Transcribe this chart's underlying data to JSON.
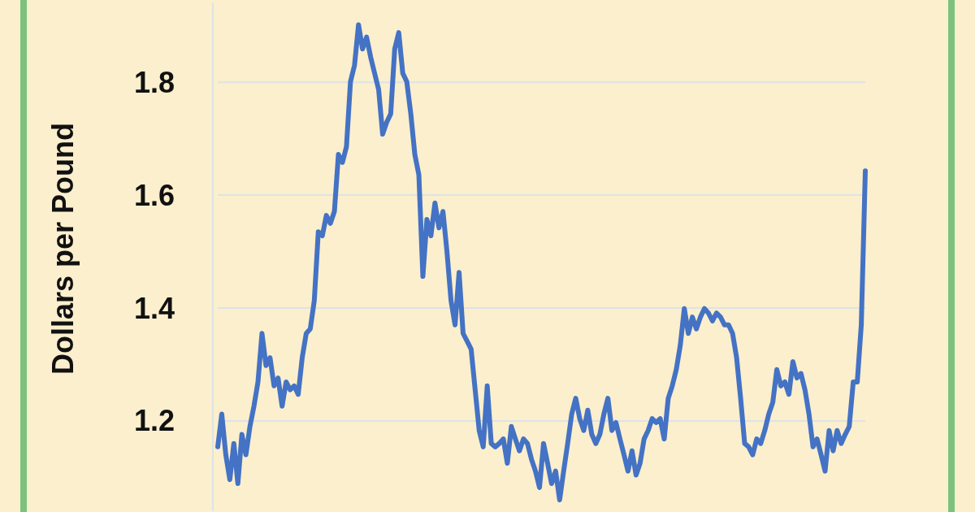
{
  "chart_data": {
    "type": "line",
    "ylabel": "Dollars per Pound",
    "categories": [
      null,
      null,
      null,
      null,
      null,
      null,
      null,
      null,
      null,
      null,
      null,
      null,
      null,
      null,
      null,
      null,
      null,
      null,
      null,
      null,
      null,
      null,
      null,
      null,
      null,
      null,
      null,
      null,
      null,
      null,
      null,
      null,
      null,
      null,
      null,
      null,
      null,
      null,
      null,
      null,
      null,
      null,
      null,
      null,
      null,
      null,
      null,
      null,
      null,
      null,
      null,
      null,
      null,
      null,
      null,
      null,
      null,
      null,
      null,
      null,
      null,
      null,
      null,
      null,
      null,
      null,
      null,
      null,
      null,
      null,
      null,
      null,
      null,
      null,
      null,
      null,
      null,
      null,
      null,
      null,
      null,
      null,
      null,
      null,
      null,
      null,
      null,
      null,
      null,
      null,
      null,
      null,
      null,
      null,
      null,
      null,
      null,
      null,
      null,
      null,
      null,
      null,
      null,
      null,
      null,
      null,
      null,
      null,
      null,
      null,
      null,
      null,
      null,
      null,
      null,
      null,
      null,
      null,
      null,
      null,
      null,
      null,
      null,
      null,
      null,
      null,
      null,
      null,
      null,
      null,
      null,
      null,
      null,
      null,
      null,
      null,
      null,
      null,
      null,
      null,
      null,
      null,
      null,
      null,
      null,
      null,
      null,
      null,
      null,
      null,
      null,
      null,
      null,
      null,
      null,
      null,
      null,
      null,
      null,
      null,
      null,
      null
    ],
    "series": [
      {
        "color": "#4472c4",
        "values": [
          1.154,
          1.212,
          1.14,
          1.096,
          1.16,
          1.089,
          1.176,
          1.14,
          1.19,
          1.226,
          1.269,
          1.355,
          1.298,
          1.312,
          1.262,
          1.276,
          1.226,
          1.269,
          1.255,
          1.262,
          1.247,
          1.312,
          1.355,
          1.363,
          1.413,
          1.535,
          1.528,
          1.564,
          1.55,
          1.571,
          1.672,
          1.658,
          1.686,
          1.801,
          1.83,
          1.902,
          1.859,
          1.88,
          1.845,
          1.816,
          1.787,
          1.708,
          1.729,
          1.744,
          1.859,
          1.888,
          1.816,
          1.801,
          1.744,
          1.672,
          1.636,
          1.456,
          1.557,
          1.528,
          1.586,
          1.542,
          1.571,
          1.499,
          1.413,
          1.37,
          1.463,
          1.355,
          1.341,
          1.327,
          1.255,
          1.183,
          1.154,
          1.262,
          1.16,
          1.154,
          1.16,
          1.168,
          1.125,
          1.19,
          1.168,
          1.147,
          1.168,
          1.16,
          1.132,
          1.111,
          1.082,
          1.16,
          1.125,
          1.089,
          1.111,
          1.06,
          1.111,
          1.16,
          1.212,
          1.24,
          1.204,
          1.183,
          1.219,
          1.176,
          1.16,
          1.176,
          1.212,
          1.24,
          1.183,
          1.197,
          1.168,
          1.14,
          1.111,
          1.147,
          1.104,
          1.125,
          1.168,
          1.183,
          1.204,
          1.197,
          1.204,
          1.168,
          1.24,
          1.262,
          1.291,
          1.334,
          1.399,
          1.355,
          1.384,
          1.363,
          1.384,
          1.399,
          1.391,
          1.377,
          1.391,
          1.384,
          1.37,
          1.37,
          1.355,
          1.312,
          1.24,
          1.16,
          1.154,
          1.14,
          1.168,
          1.16,
          1.183,
          1.212,
          1.233,
          1.291,
          1.262,
          1.269,
          1.247,
          1.305,
          1.276,
          1.284,
          1.255,
          1.212,
          1.154,
          1.168,
          1.14,
          1.111,
          1.183,
          1.147,
          1.183,
          1.16,
          1.176,
          1.19,
          1.269,
          1.269,
          1.37,
          1.643
        ]
      }
    ],
    "ylim": [
      1.04,
      1.94
    ],
    "yticks": [
      1.2,
      1.4,
      1.6,
      1.8
    ],
    "grid": "y",
    "tick_labels": "y",
    "marker": "none",
    "line_style": "solid"
  }
}
